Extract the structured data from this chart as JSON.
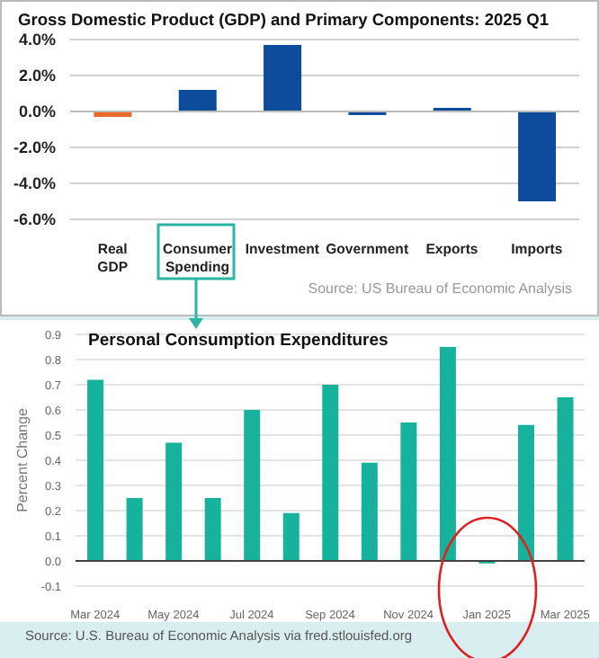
{
  "chart_data": [
    {
      "type": "bar",
      "title": "Gross Domestic Product (GDP) and Primary Components:  2025 Q1",
      "categories": [
        "Real GDP",
        "Consumer Spending",
        "Investment",
        "Government",
        "Exports",
        "Imports"
      ],
      "values": [
        -0.3,
        1.2,
        3.7,
        -0.2,
        0.2,
        -5.0
      ],
      "colors": [
        "#e8692a",
        "#0d4c9c",
        "#0d4c9c",
        "#0d4c9c",
        "#0d4c9c",
        "#0d4c9c"
      ],
      "ylim": [
        -6,
        4
      ],
      "yticks": [
        {
          "value": -6,
          "label": "-6.0%"
        },
        {
          "value": -4,
          "label": "-4.0%"
        },
        {
          "value": -2,
          "label": "-2.0%"
        },
        {
          "value": 0,
          "label": "0.0%"
        },
        {
          "value": 2,
          "label": "2.0%"
        },
        {
          "value": 4,
          "label": "4.0%"
        }
      ],
      "grid": "y",
      "annotations": [
        "Source: US Bureau of Economic Analysis"
      ]
    },
    {
      "type": "bar",
      "title": "Personal Consumption Expenditures",
      "ylabel": "Percent Change",
      "categories": [
        "Mar 2024",
        null,
        "May 2024",
        null,
        "Jul 2024",
        null,
        "Sep 2024",
        null,
        "Nov 2024",
        null,
        "Jan 2025",
        null,
        "Mar 2025"
      ],
      "values": [
        0.72,
        0.25,
        0.47,
        0.25,
        0.6,
        0.19,
        0.7,
        0.39,
        0.55,
        0.85,
        -0.01,
        0.54,
        0.65
      ],
      "color": "#17b29b",
      "ylim": [
        -0.1,
        0.9
      ],
      "yticks": [
        -0.1,
        0.1,
        {
          "value": 0,
          "label": "0.0"
        },
        0.2,
        0.3,
        0.4,
        0.5,
        0.6,
        0.7,
        0.8,
        0.9
      ],
      "grid": "y",
      "annotations": [
        "Source: U.S. Bureau of Economic Analysis via fred.stlouisfed.org"
      ]
    }
  ]
}
